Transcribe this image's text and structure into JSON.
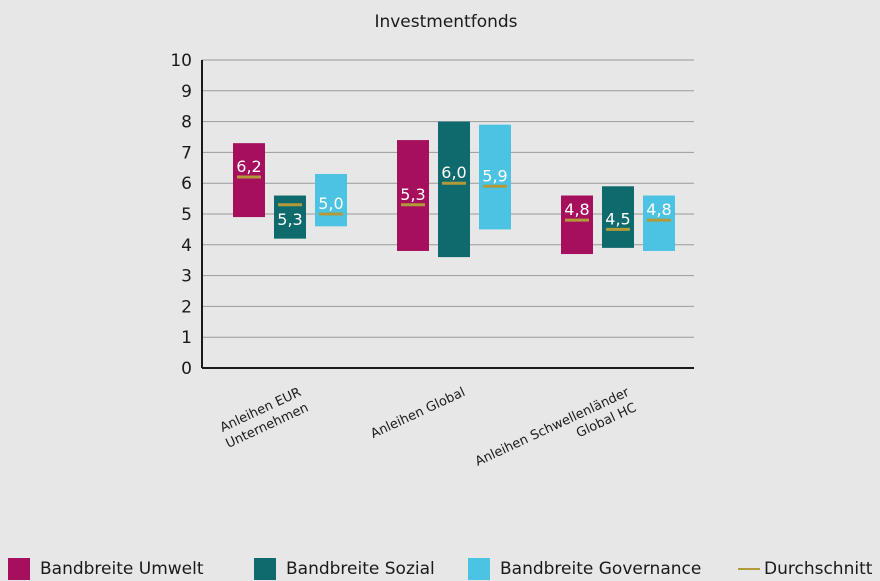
{
  "chart_data": {
    "type": "bar",
    "title": "Investmentfonds",
    "ylim": [
      0,
      10
    ],
    "yticks": [
      "0",
      "1",
      "2",
      "3",
      "4",
      "5",
      "6",
      "7",
      "8",
      "9",
      "10"
    ],
    "grid": true,
    "legend_placement": "bottom",
    "categories": [
      [
        "Anleihen EUR",
        "Unternehmen"
      ],
      [
        "Anleihen Global"
      ],
      [
        "Anleihen Schwellenländer",
        "Global HC"
      ]
    ],
    "series": [
      {
        "name": "Bandbreite Umwelt",
        "color": "#a50f5c",
        "ranges": [
          [
            4.9,
            7.3
          ],
          [
            3.8,
            7.4
          ],
          [
            3.7,
            5.6
          ]
        ],
        "averages": [
          6.2,
          5.3,
          4.8
        ],
        "labels": [
          "6,2",
          "5,3",
          "4,8"
        ]
      },
      {
        "name": "Bandbreite Sozial",
        "color": "#0e6a6c",
        "ranges": [
          [
            4.2,
            5.6
          ],
          [
            3.6,
            8.0
          ],
          [
            3.9,
            5.9
          ]
        ],
        "averages": [
          5.3,
          6.0,
          4.5
        ],
        "labels": [
          "5,3",
          "6,0",
          "4,5"
        ]
      },
      {
        "name": "Bandbreite Governance",
        "color": "#4cc3e2",
        "ranges": [
          [
            4.6,
            6.3
          ],
          [
            4.5,
            7.9
          ],
          [
            3.8,
            5.6
          ]
        ],
        "averages": [
          5.0,
          5.9,
          4.8
        ],
        "labels": [
          "5,0",
          "5,9",
          "4,8"
        ]
      }
    ],
    "average_line": {
      "name": "Durchschnitt",
      "color": "#b29a3a"
    }
  }
}
